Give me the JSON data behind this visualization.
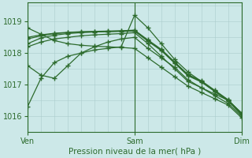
{
  "title": "Pression niveau de la mer( hPa )",
  "bg_color": "#cce8e8",
  "grid_color": "#aacccc",
  "line_color": "#2d6b2d",
  "ylim": [
    1015.6,
    1019.6
  ],
  "xlim": [
    0,
    48
  ],
  "xtick_positions": [
    0,
    24,
    48
  ],
  "xtick_labels": [
    "Ven",
    "Sam",
    "Dim"
  ],
  "ytick_positions": [
    1016,
    1017,
    1018,
    1019
  ],
  "series": [
    {
      "x": [
        0,
        3,
        6,
        9,
        12,
        15,
        18,
        21,
        24,
        27,
        30,
        33,
        36,
        39,
        42,
        45,
        48
      ],
      "y": [
        1016.3,
        1017.2,
        1017.7,
        1017.9,
        1018.0,
        1018.1,
        1018.15,
        1018.2,
        1019.2,
        1018.8,
        1018.3,
        1017.8,
        1017.4,
        1017.1,
        1016.8,
        1016.5,
        1016.1
      ]
    },
    {
      "x": [
        0,
        3,
        6,
        9,
        12,
        15,
        18,
        21,
        24,
        27,
        30,
        33,
        36,
        39,
        42,
        45,
        48
      ],
      "y": [
        1018.2,
        1018.35,
        1018.45,
        1018.5,
        1018.55,
        1018.58,
        1018.6,
        1018.62,
        1018.65,
        1018.3,
        1017.9,
        1017.5,
        1017.1,
        1016.9,
        1016.7,
        1016.5,
        1016.05
      ]
    },
    {
      "x": [
        0,
        3,
        6,
        9,
        12,
        15,
        18,
        21,
        24,
        27,
        30,
        33,
        36,
        39,
        42,
        45,
        48
      ],
      "y": [
        1018.45,
        1018.55,
        1018.62,
        1018.65,
        1018.67,
        1018.68,
        1018.69,
        1018.7,
        1018.72,
        1018.4,
        1018.1,
        1017.7,
        1017.3,
        1017.1,
        1016.8,
        1016.5,
        1016.1
      ]
    },
    {
      "x": [
        0,
        3,
        6,
        9,
        12,
        15,
        18,
        21,
        24,
        27,
        30,
        33,
        36,
        39,
        42,
        45,
        48
      ],
      "y": [
        1018.5,
        1018.58,
        1018.63,
        1018.66,
        1018.68,
        1018.69,
        1018.7,
        1018.71,
        1018.73,
        1018.42,
        1018.12,
        1017.72,
        1017.32,
        1017.12,
        1016.82,
        1016.52,
        1016.08
      ]
    },
    {
      "x": [
        0,
        3,
        6,
        9,
        12,
        15,
        18,
        21,
        24,
        27,
        30,
        33,
        36,
        39,
        42,
        45,
        48
      ],
      "y": [
        1018.3,
        1018.48,
        1018.57,
        1018.62,
        1018.65,
        1018.67,
        1018.68,
        1018.69,
        1018.7,
        1018.38,
        1018.08,
        1017.68,
        1017.28,
        1017.08,
        1016.78,
        1016.48,
        1016.04
      ]
    },
    {
      "x": [
        0,
        3,
        6,
        9,
        12,
        15,
        18,
        21,
        24,
        27,
        30,
        33,
        36,
        39,
        42,
        45,
        48
      ],
      "y": [
        1017.6,
        1017.3,
        1017.2,
        1017.6,
        1018.0,
        1018.2,
        1018.35,
        1018.45,
        1018.5,
        1018.15,
        1017.85,
        1017.55,
        1017.15,
        1016.9,
        1016.65,
        1016.4,
        1016.0
      ]
    },
    {
      "x": [
        0,
        3,
        6,
        9,
        12,
        15,
        18,
        21,
        24,
        27,
        30,
        33,
        36,
        39,
        42,
        45,
        48
      ],
      "y": [
        1018.8,
        1018.6,
        1018.4,
        1018.3,
        1018.25,
        1018.22,
        1018.2,
        1018.18,
        1018.15,
        1017.85,
        1017.55,
        1017.25,
        1016.95,
        1016.75,
        1016.55,
        1016.35,
        1015.95
      ]
    }
  ],
  "marker_size": 4.0,
  "linewidth": 0.9
}
